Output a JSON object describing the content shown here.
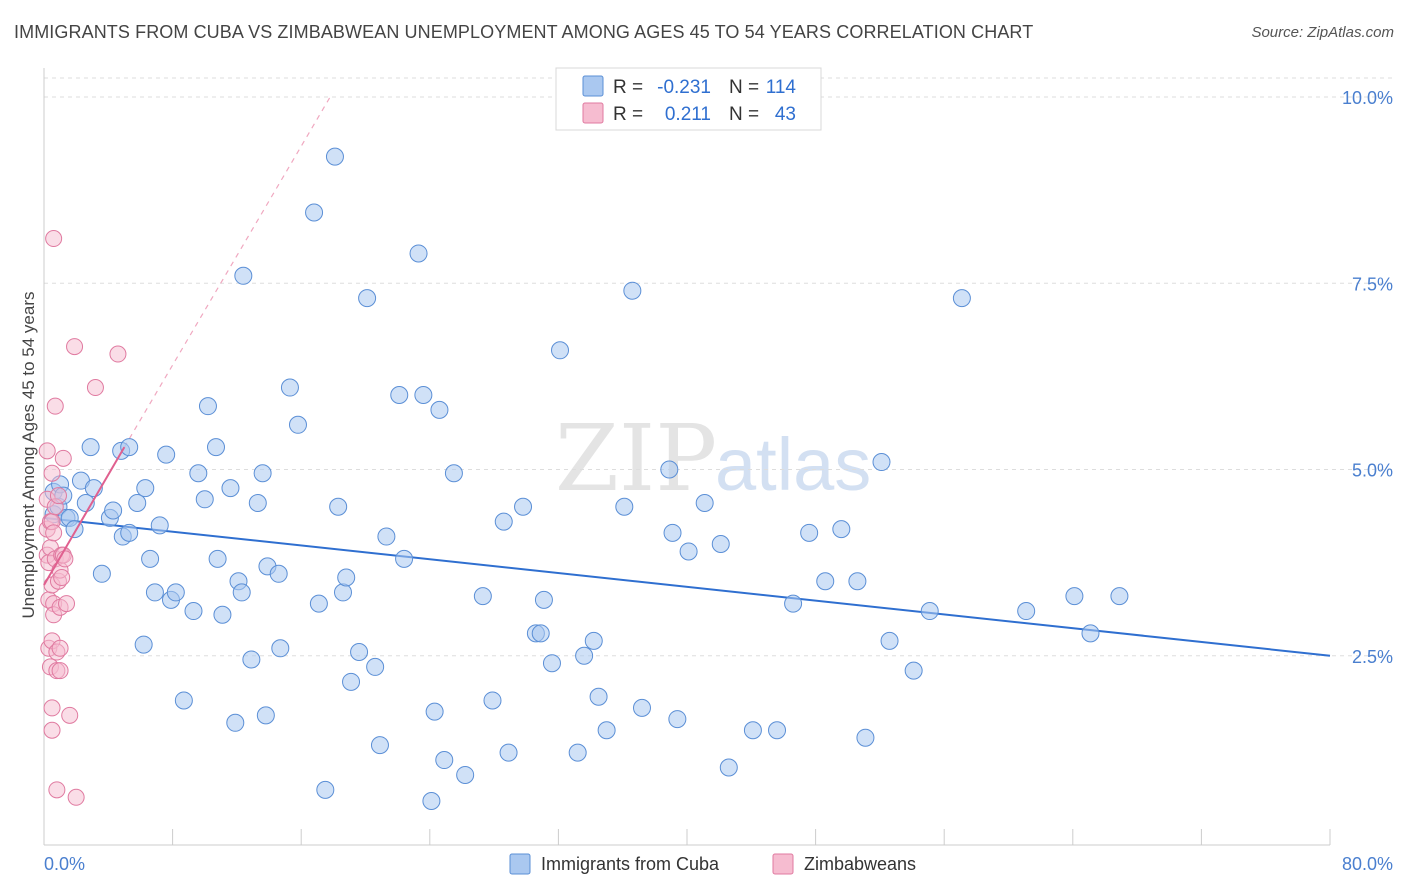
{
  "title": "IMMIGRANTS FROM CUBA VS ZIMBABWEAN UNEMPLOYMENT AMONG AGES 45 TO 54 YEARS CORRELATION CHART",
  "source": "Source: ZipAtlas.com",
  "watermark": {
    "zip": "ZIP",
    "atlas": "atlas"
  },
  "legend": {
    "r_label": "R =",
    "n_label": "N =",
    "rows": [
      {
        "r": "-0.231",
        "n": "114"
      },
      {
        "r": "0.211",
        "n": "43"
      }
    ]
  },
  "bottom_legend": [
    "Immigrants from Cuba",
    "Zimbabweans"
  ],
  "colors": {
    "blue_fill": "#aac8f0",
    "blue_stroke": "#5b8fd6",
    "blue_line": "#2f6fd0",
    "pink_fill": "#f6bcd0",
    "pink_stroke": "#e07aa0",
    "pink_line": "#e0608f",
    "grid": "#dddddd",
    "tick": "#4a7fcf"
  },
  "chart_data": {
    "type": "scatter",
    "title": "IMMIGRANTS FROM CUBA VS ZIMBABWEAN UNEMPLOYMENT AMONG AGES 45 TO 54 YEARS CORRELATION CHART",
    "xlabel": "",
    "ylabel": "Unemployment Among Ages 45 to 54 years",
    "xlim": [
      0,
      80
    ],
    "ylim": [
      0,
      10.5
    ],
    "x_tick_labels": [
      "0.0%",
      "80.0%"
    ],
    "y_ticks": [
      2.5,
      5.0,
      7.5,
      10.0
    ],
    "y_tick_labels": [
      "2.5%",
      "5.0%",
      "7.5%",
      "10.0%"
    ],
    "series": [
      {
        "name": "Immigrants from Cuba",
        "color": "blue",
        "r": -0.231,
        "n": 114,
        "trend": {
          "x0": 0,
          "y0": 4.35,
          "x1": 80,
          "y1": 2.5
        },
        "points": [
          [
            0.6,
            4.7
          ],
          [
            0.6,
            4.4
          ],
          [
            0.9,
            4.5
          ],
          [
            1.0,
            4.8
          ],
          [
            1.2,
            4.65
          ],
          [
            1.4,
            4.35
          ],
          [
            1.6,
            4.35
          ],
          [
            1.9,
            4.2
          ],
          [
            2.3,
            4.85
          ],
          [
            2.6,
            4.55
          ],
          [
            2.9,
            5.3
          ],
          [
            3.1,
            4.75
          ],
          [
            3.6,
            3.6
          ],
          [
            4.1,
            4.35
          ],
          [
            4.3,
            4.45
          ],
          [
            4.8,
            5.25
          ],
          [
            4.9,
            4.1
          ],
          [
            5.3,
            5.3
          ],
          [
            5.3,
            4.15
          ],
          [
            5.8,
            4.55
          ],
          [
            6.2,
            2.65
          ],
          [
            6.3,
            4.75
          ],
          [
            6.6,
            3.8
          ],
          [
            6.9,
            3.35
          ],
          [
            7.2,
            4.25
          ],
          [
            7.6,
            5.2
          ],
          [
            7.9,
            3.25
          ],
          [
            8.2,
            3.35
          ],
          [
            8.7,
            1.9
          ],
          [
            9.3,
            3.1
          ],
          [
            9.6,
            4.95
          ],
          [
            10.0,
            4.6
          ],
          [
            10.2,
            5.85
          ],
          [
            10.7,
            5.3
          ],
          [
            10.8,
            3.8
          ],
          [
            11.1,
            3.05
          ],
          [
            11.6,
            4.75
          ],
          [
            11.9,
            1.6
          ],
          [
            12.1,
            3.5
          ],
          [
            12.3,
            3.35
          ],
          [
            12.4,
            7.6
          ],
          [
            12.9,
            2.45
          ],
          [
            13.3,
            4.55
          ],
          [
            13.6,
            4.95
          ],
          [
            13.8,
            1.7
          ],
          [
            13.9,
            3.7
          ],
          [
            14.7,
            2.6
          ],
          [
            14.6,
            3.6
          ],
          [
            15.3,
            6.1
          ],
          [
            15.8,
            5.6
          ],
          [
            16.8,
            8.45
          ],
          [
            17.1,
            3.2
          ],
          [
            17.5,
            0.7
          ],
          [
            18.1,
            9.2
          ],
          [
            18.3,
            4.5
          ],
          [
            18.6,
            3.35
          ],
          [
            18.8,
            3.55
          ],
          [
            19.1,
            2.15
          ],
          [
            19.6,
            2.55
          ],
          [
            20.1,
            7.3
          ],
          [
            20.6,
            2.35
          ],
          [
            20.9,
            1.3
          ],
          [
            21.3,
            4.1
          ],
          [
            22.1,
            6.0
          ],
          [
            22.4,
            3.8
          ],
          [
            23.3,
            7.9
          ],
          [
            23.6,
            6.0
          ],
          [
            24.1,
            0.55
          ],
          [
            24.3,
            1.75
          ],
          [
            24.6,
            5.8
          ],
          [
            24.9,
            1.1
          ],
          [
            25.5,
            4.95
          ],
          [
            26.2,
            0.9
          ],
          [
            27.3,
            3.3
          ],
          [
            27.9,
            1.9
          ],
          [
            28.6,
            4.3
          ],
          [
            28.9,
            1.2
          ],
          [
            29.8,
            4.5
          ],
          [
            30.6,
            2.8
          ],
          [
            30.9,
            2.8
          ],
          [
            31.1,
            3.25
          ],
          [
            31.6,
            2.4
          ],
          [
            32.1,
            6.6
          ],
          [
            33.2,
            1.2
          ],
          [
            33.6,
            2.5
          ],
          [
            34.2,
            2.7
          ],
          [
            34.5,
            1.95
          ],
          [
            35.0,
            1.5
          ],
          [
            36.1,
            4.5
          ],
          [
            36.6,
            7.4
          ],
          [
            37.2,
            1.8
          ],
          [
            38.9,
            5.0
          ],
          [
            39.1,
            4.15
          ],
          [
            39.4,
            1.65
          ],
          [
            40.1,
            3.9
          ],
          [
            41.1,
            4.55
          ],
          [
            42.1,
            4.0
          ],
          [
            42.6,
            1.0
          ],
          [
            44.1,
            1.5
          ],
          [
            45.6,
            1.5
          ],
          [
            46.6,
            3.2
          ],
          [
            47.6,
            4.15
          ],
          [
            48.6,
            3.5
          ],
          [
            49.6,
            4.2
          ],
          [
            50.6,
            3.5
          ],
          [
            51.1,
            1.4
          ],
          [
            52.1,
            5.1
          ],
          [
            52.6,
            2.7
          ],
          [
            54.1,
            2.3
          ],
          [
            55.1,
            3.1
          ],
          [
            57.1,
            7.3
          ],
          [
            61.1,
            3.1
          ],
          [
            64.1,
            3.3
          ],
          [
            65.1,
            2.8
          ],
          [
            66.9,
            3.3
          ]
        ]
      },
      {
        "name": "Zimbabweans",
        "color": "pink",
        "r": 0.211,
        "n": 43,
        "trend": {
          "x0": 0,
          "y0": 3.45,
          "x1": 5.0,
          "y1": 5.3
        },
        "trend_dashed": {
          "x0": 5.0,
          "y0": 5.3,
          "x1": 17.8,
          "y1": 10.0
        },
        "points": [
          [
            0.2,
            5.25
          ],
          [
            0.2,
            4.6
          ],
          [
            0.2,
            4.2
          ],
          [
            0.2,
            3.85
          ],
          [
            0.3,
            3.75
          ],
          [
            0.3,
            3.25
          ],
          [
            0.3,
            2.6
          ],
          [
            0.4,
            4.3
          ],
          [
            0.4,
            3.95
          ],
          [
            0.4,
            2.35
          ],
          [
            0.5,
            4.95
          ],
          [
            0.5,
            4.3
          ],
          [
            0.5,
            3.45
          ],
          [
            0.5,
            2.7
          ],
          [
            0.5,
            1.8
          ],
          [
            0.5,
            1.5
          ],
          [
            0.6,
            8.1
          ],
          [
            0.6,
            4.15
          ],
          [
            0.6,
            3.2
          ],
          [
            0.6,
            3.05
          ],
          [
            0.7,
            5.85
          ],
          [
            0.7,
            4.5
          ],
          [
            0.7,
            3.8
          ],
          [
            0.8,
            2.55
          ],
          [
            0.8,
            2.3
          ],
          [
            0.8,
            0.7
          ],
          [
            0.9,
            4.65
          ],
          [
            0.9,
            3.5
          ],
          [
            1.0,
            3.65
          ],
          [
            1.0,
            3.15
          ],
          [
            1.0,
            2.6
          ],
          [
            1.0,
            2.3
          ],
          [
            1.1,
            3.85
          ],
          [
            1.1,
            3.55
          ],
          [
            1.2,
            5.15
          ],
          [
            1.2,
            3.85
          ],
          [
            1.3,
            3.8
          ],
          [
            1.4,
            3.2
          ],
          [
            1.6,
            1.7
          ],
          [
            1.9,
            6.65
          ],
          [
            2.0,
            0.6
          ],
          [
            3.2,
            6.1
          ],
          [
            4.6,
            6.55
          ]
        ]
      }
    ]
  }
}
